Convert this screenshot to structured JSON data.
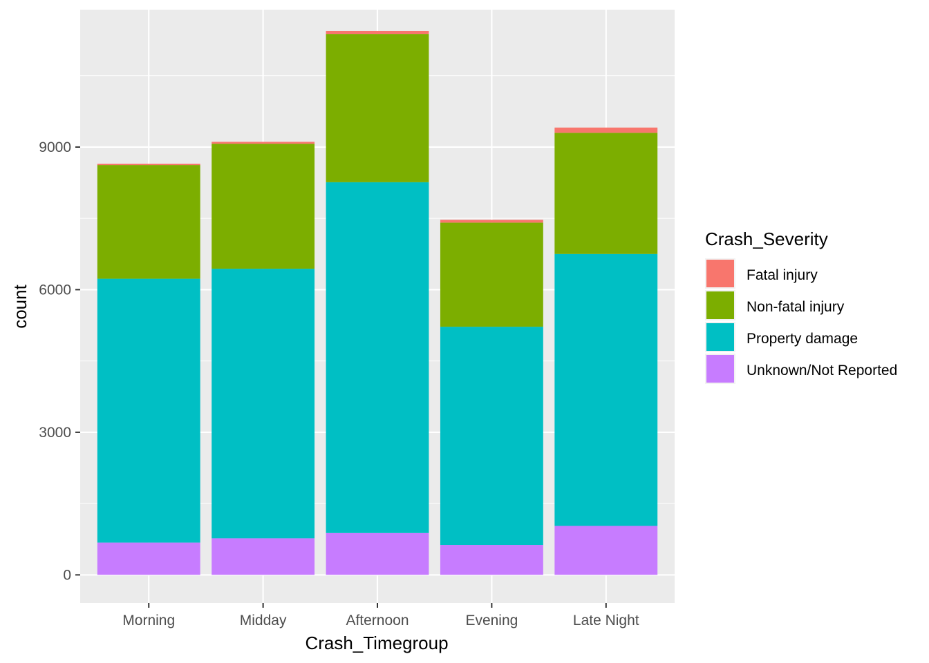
{
  "chart_data": {
    "type": "bar",
    "stacked": true,
    "xlabel": "Crash_Timegroup",
    "ylabel": "count",
    "categories": [
      "Morning",
      "Midday",
      "Afternoon",
      "Evening",
      "Late Night"
    ],
    "series": [
      {
        "name": "Unknown/Not Reported",
        "color": "#C77CFF",
        "values": [
          680,
          770,
          880,
          630,
          1030
        ]
      },
      {
        "name": "Property damage",
        "color": "#00BFC4",
        "values": [
          5550,
          5670,
          7380,
          4590,
          5720
        ]
      },
      {
        "name": "Non-fatal injury",
        "color": "#7CAE00",
        "values": [
          2390,
          2630,
          3120,
          2190,
          2550
        ]
      },
      {
        "name": "Fatal injury",
        "color": "#F8766D",
        "values": [
          30,
          40,
          60,
          60,
          110
        ]
      }
    ],
    "ylim": [
      -590,
      11890
    ],
    "y_ticks": [
      0,
      3000,
      6000,
      9000
    ],
    "y_tick_labels": [
      "0",
      "3000",
      "6000",
      "9000"
    ],
    "grid": true,
    "legend": {
      "title": "Crash_Severity",
      "position": "right",
      "entries": [
        "Fatal injury",
        "Non-fatal injury",
        "Property damage",
        "Unknown/Not Reported"
      ],
      "colors": [
        "#F8766D",
        "#7CAE00",
        "#00BFC4",
        "#C77CFF"
      ]
    }
  }
}
